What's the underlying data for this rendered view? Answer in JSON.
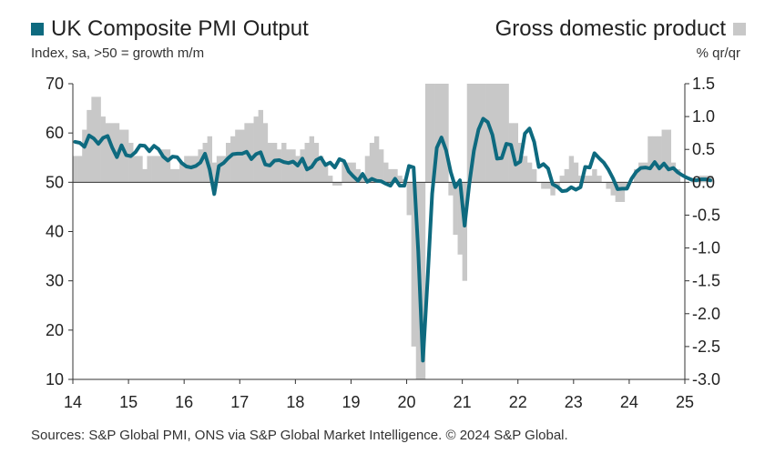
{
  "legend": {
    "left_label": "UK Composite PMI Output",
    "right_label": "Gross domestic product",
    "left_subtitle": "Index, sa, >50 = growth m/m",
    "right_subtitle": "% qr/qr"
  },
  "source": "Sources: S&P Global PMI, ONS via S&P Global Market Intelligence. © 2024 S&P Global.",
  "colors": {
    "pmi_line": "#0e6a7f",
    "gdp_bars": "#c8c8c8",
    "axis": "#333333"
  },
  "chart_data": {
    "type": "line",
    "left_axis": {
      "ylim": [
        10,
        70
      ],
      "ticks": [
        "10",
        "20",
        "30",
        "40",
        "50",
        "60",
        "70"
      ]
    },
    "right_axis": {
      "ylim": [
        -3.0,
        1.5
      ],
      "ticks": [
        "-3.0",
        "-2.5",
        "-2.0",
        "-1.5",
        "-1.0",
        "-0.5",
        "0.0",
        "0.5",
        "1.0",
        "1.5"
      ]
    },
    "x_ticks": [
      "14",
      "15",
      "16",
      "17",
      "18",
      "19",
      "20",
      "21",
      "22",
      "23",
      "24",
      "25"
    ],
    "series": [
      {
        "name": "UK Composite PMI Output",
        "kind": "line",
        "axis": "left",
        "start": "2014-01",
        "frequency": "monthly",
        "values": [
          58.2,
          58.0,
          57.2,
          59.5,
          58.9,
          57.8,
          59.0,
          59.4,
          57.0,
          55.1,
          57.5,
          55.5,
          55.3,
          56.1,
          57.5,
          57.4,
          56.3,
          57.4,
          56.7,
          55.2,
          54.4,
          55.2,
          55.1,
          53.9,
          53.2,
          53.0,
          53.3,
          54.0,
          55.8,
          52.6,
          47.6,
          53.3,
          53.9,
          54.9,
          55.7,
          55.8,
          55.8,
          56.2,
          54.7,
          55.7,
          56.1,
          53.6,
          53.4,
          54.4,
          54.5,
          54.1,
          53.9,
          54.2,
          53.4,
          54.8,
          52.6,
          53.1,
          54.5,
          55.0,
          53.5,
          54.0,
          53.0,
          54.7,
          54.3,
          52.2,
          51.2,
          50.3,
          51.7,
          50.1,
          50.7,
          50.3,
          50.2,
          49.7,
          49.3,
          50.7,
          49.3,
          49.3,
          53.3,
          53.0,
          36.0,
          13.8,
          30.0,
          47.7,
          57.0,
          59.1,
          56.5,
          52.1,
          49.0,
          50.4,
          41.2,
          49.6,
          56.4,
          60.7,
          62.9,
          62.2,
          59.6,
          54.8,
          54.9,
          57.8,
          57.6,
          53.6,
          54.2,
          59.9,
          60.9,
          58.2,
          53.1,
          53.7,
          52.8,
          49.6,
          49.1,
          48.2,
          48.3,
          49.0,
          48.5,
          49.0,
          53.1,
          53.0,
          55.9,
          54.9,
          54.0,
          52.6,
          50.8,
          48.6,
          48.7,
          48.7,
          50.7,
          52.1,
          52.9,
          53.0,
          52.8,
          54.1,
          52.8,
          53.8,
          52.6,
          52.9,
          52.0,
          51.4,
          50.9,
          50.5,
          50.4,
          50.6,
          50.6,
          50.4
        ]
      },
      {
        "name": "Gross domestic product",
        "kind": "bar",
        "axis": "right",
        "start": "2014-01",
        "frequency": "monthly",
        "values": [
          0.4,
          0.4,
          0.8,
          1.1,
          1.3,
          1.3,
          1.0,
          0.9,
          0.9,
          0.9,
          0.8,
          0.8,
          0.6,
          0.4,
          0.4,
          0.2,
          0.4,
          0.4,
          0.4,
          0.5,
          0.5,
          0.2,
          0.2,
          0.3,
          0.4,
          0.4,
          0.4,
          0.5,
          0.6,
          0.7,
          0.3,
          0.4,
          0.4,
          0.6,
          0.7,
          0.8,
          0.8,
          0.9,
          0.9,
          1.0,
          1.1,
          0.9,
          0.6,
          0.6,
          0.5,
          0.6,
          0.5,
          0.5,
          0.4,
          0.5,
          0.6,
          0.7,
          0.6,
          0.4,
          0.3,
          0.1,
          -0.05,
          -0.05,
          0.3,
          0.3,
          0.3,
          0.2,
          0.1,
          0.4,
          0.6,
          0.7,
          0.5,
          0.3,
          0.2,
          0.2,
          0.1,
          0.05,
          -0.5,
          -2.5,
          -3.0,
          -3.0,
          1.5,
          1.5,
          1.5,
          1.5,
          1.5,
          -0.2,
          -0.8,
          -1.1,
          -1.5,
          1.5,
          1.5,
          1.5,
          1.5,
          1.5,
          1.5,
          1.5,
          1.5,
          1.5,
          0.9,
          0.9,
          0.6,
          0.4,
          0.3,
          0.2,
          0.0,
          -0.1,
          -0.1,
          -0.2,
          -0.1,
          0.1,
          0.2,
          0.4,
          0.3,
          0.1,
          0.1,
          0.1,
          0.2,
          0.1,
          0.0,
          -0.1,
          -0.2,
          -0.3,
          -0.3,
          -0.1,
          0.0,
          0.2,
          0.3,
          0.3,
          0.7,
          0.7,
          0.7,
          0.8,
          0.8,
          0.3,
          0.2,
          0.0,
          0.0,
          0.0,
          0.0,
          0.1,
          0.1,
          0.1
        ]
      }
    ]
  }
}
